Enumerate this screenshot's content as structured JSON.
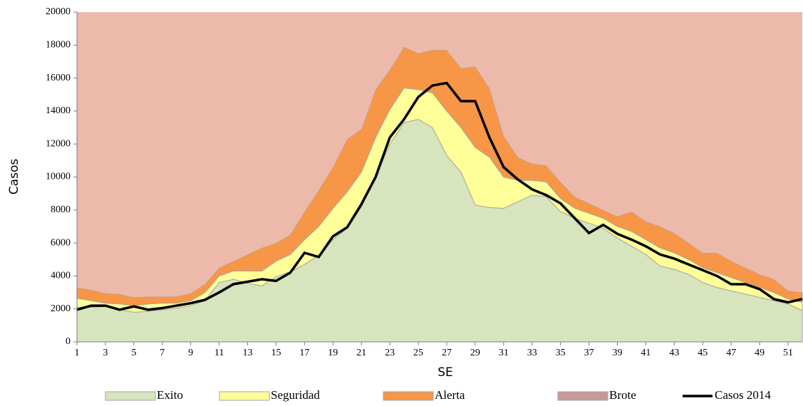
{
  "chart_data": {
    "type": "stacked_area_line",
    "xlabel": "SE",
    "ylabel": "Casos",
    "x": [
      1,
      2,
      3,
      4,
      5,
      6,
      7,
      8,
      9,
      10,
      11,
      12,
      13,
      14,
      15,
      16,
      17,
      18,
      19,
      20,
      21,
      22,
      23,
      24,
      25,
      26,
      27,
      28,
      29,
      30,
      31,
      32,
      33,
      34,
      35,
      36,
      37,
      38,
      39,
      40,
      41,
      42,
      43,
      44,
      45,
      46,
      47,
      48,
      49,
      50,
      51,
      52
    ],
    "xlim": [
      1,
      52
    ],
    "xticks": [
      1,
      3,
      5,
      7,
      9,
      11,
      13,
      15,
      17,
      19,
      21,
      23,
      25,
      27,
      29,
      31,
      33,
      35,
      37,
      39,
      41,
      43,
      45,
      47,
      49,
      51
    ],
    "ylim": [
      0,
      20000
    ],
    "yticks": [
      0,
      2000,
      4000,
      6000,
      8000,
      10000,
      12000,
      14000,
      16000,
      18000,
      20000
    ],
    "series": [
      {
        "name": "Exito",
        "color": "#d7e4bd",
        "stroke": "#a6a6a6",
        "kind": "area",
        "values": [
          2100,
          2100,
          2150,
          1950,
          1800,
          1850,
          1950,
          2050,
          2200,
          2500,
          3600,
          3800,
          3550,
          3400,
          3950,
          4250,
          4700,
          5250,
          6200,
          6900,
          8200,
          10000,
          12000,
          13300,
          13500,
          13000,
          11300,
          10300,
          8300,
          8150,
          8100,
          8500,
          8900,
          8800,
          7900,
          7500,
          7200,
          6900,
          6300,
          5800,
          5300,
          4600,
          4400,
          4100,
          3600,
          3300,
          3100,
          2900,
          2700,
          2500,
          2300,
          1900
        ]
      },
      {
        "name": "Seguridad",
        "color": "#ffff99",
        "stroke": "#a6a6a6",
        "kind": "area",
        "values": [
          550,
          400,
          200,
          350,
          400,
          450,
          400,
          300,
          300,
          500,
          400,
          500,
          750,
          900,
          950,
          1050,
          1500,
          1750,
          1900,
          2200,
          2100,
          2400,
          2100,
          2100,
          1800,
          2100,
          2700,
          2700,
          3500,
          3050,
          1900,
          1300,
          900,
          900,
          800,
          600,
          600,
          600,
          700,
          900,
          900,
          1100,
          1000,
          900,
          900,
          900,
          800,
          700,
          600,
          500,
          300,
          500
        ]
      },
      {
        "name": "Alerta",
        "color": "#f79646",
        "stroke": "#a6a6a6",
        "kind": "area",
        "values": [
          650,
          650,
          600,
          600,
          500,
          450,
          400,
          400,
          450,
          500,
          500,
          600,
          1000,
          1400,
          1100,
          1200,
          1700,
          2200,
          2500,
          3200,
          2600,
          2900,
          2400,
          2500,
          2200,
          2600,
          3700,
          3600,
          4900,
          4200,
          2500,
          1400,
          1000,
          1000,
          1000,
          700,
          600,
          500,
          600,
          1200,
          1100,
          1300,
          1200,
          1000,
          900,
          1200,
          1000,
          900,
          800,
          800,
          500,
          600
        ]
      },
      {
        "name": "Brote",
        "color": "#ecb9ab",
        "swatch": "#c9989a",
        "stroke": "none",
        "kind": "area",
        "values": [
          16700,
          16850,
          17050,
          17100,
          17300,
          17250,
          17250,
          17250,
          17050,
          16500,
          15500,
          15100,
          14700,
          14300,
          14000,
          13500,
          12100,
          10800,
          9400,
          7700,
          7100,
          4700,
          3500,
          2100,
          2500,
          2300,
          2300,
          3400,
          3300,
          4600,
          7500,
          8800,
          9200,
          9300,
          10300,
          11200,
          11600,
          12000,
          12400,
          12100,
          12700,
          13000,
          13400,
          14000,
          14600,
          14600,
          15100,
          15500,
          15900,
          16200,
          16900,
          17000
        ]
      },
      {
        "name": "Casos 2014",
        "color": "#000000",
        "kind": "line",
        "values": [
          1950,
          2200,
          2200,
          1950,
          2150,
          1950,
          2050,
          2200,
          2350,
          2550,
          3000,
          3500,
          3650,
          3800,
          3700,
          4200,
          5400,
          5150,
          6400,
          6950,
          8350,
          10000,
          12400,
          13500,
          14850,
          15550,
          15700,
          14600,
          14600,
          12400,
          10600,
          9850,
          9250,
          8900,
          8400,
          7500,
          6600,
          7100,
          6550,
          6200,
          5800,
          5300,
          5050,
          4700,
          4350,
          4000,
          3500,
          3500,
          3200,
          2600,
          2400,
          2600
        ]
      }
    ]
  }
}
